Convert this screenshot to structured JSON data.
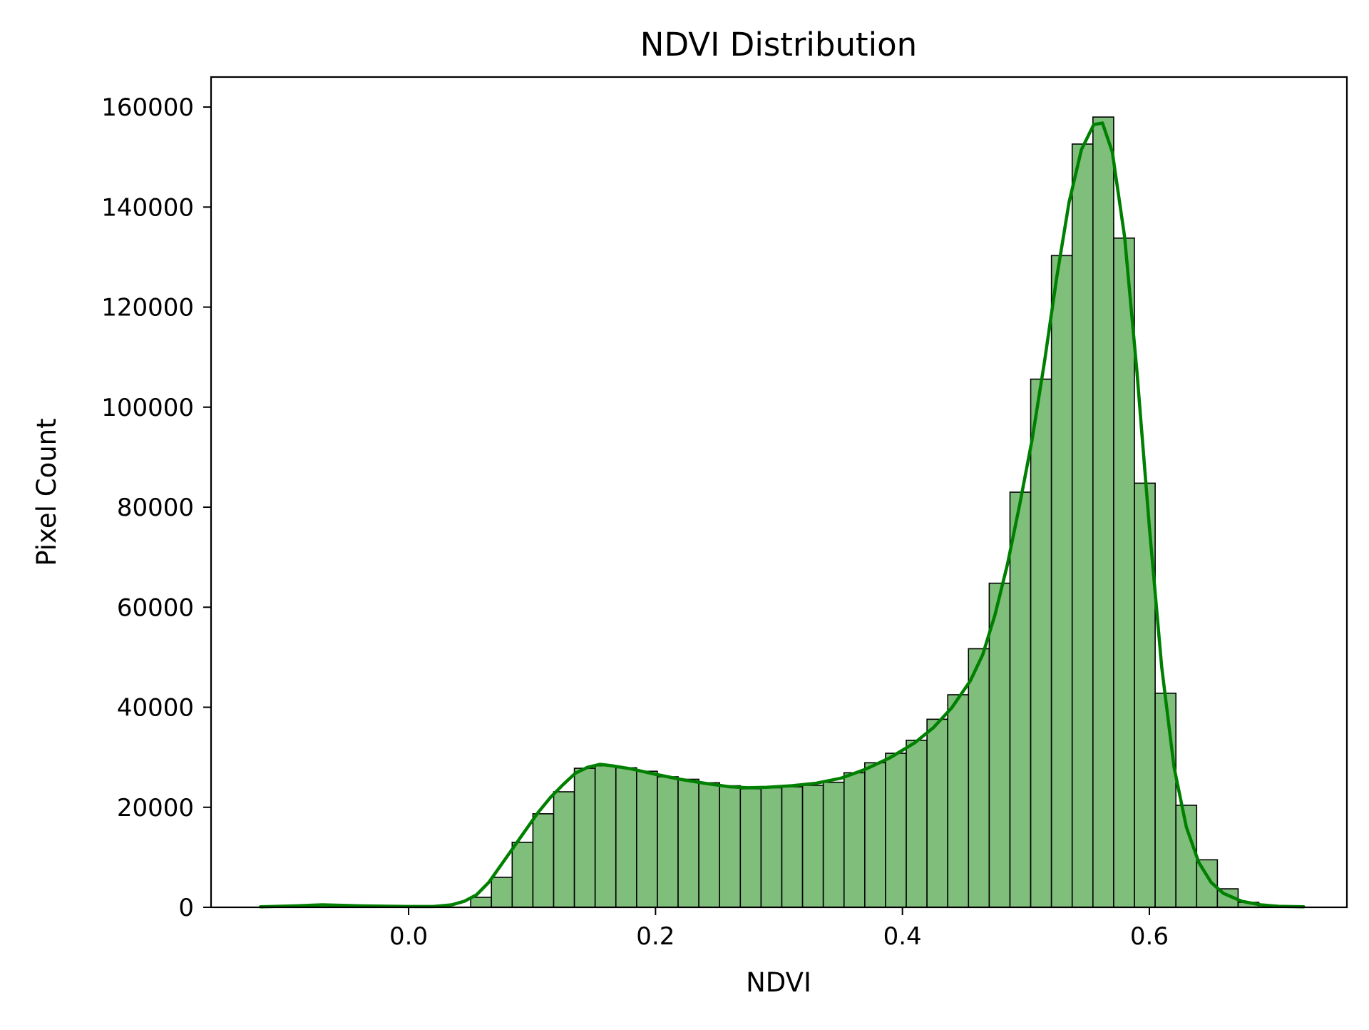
{
  "chart_data": {
    "type": "bar",
    "title": "NDVI Distribution",
    "xlabel": "NDVI",
    "ylabel": "Pixel Count",
    "xlim": [
      -0.16,
      0.76
    ],
    "ylim": [
      0,
      166000
    ],
    "x_ticks": [
      0.0,
      0.2,
      0.4,
      0.6
    ],
    "x_tick_labels": [
      "0.0",
      "0.2",
      "0.4",
      "0.6"
    ],
    "y_ticks": [
      0,
      20000,
      40000,
      60000,
      80000,
      100000,
      120000,
      140000,
      160000
    ],
    "y_tick_labels": [
      "0",
      "20000",
      "40000",
      "60000",
      "80000",
      "100000",
      "120000",
      "140000",
      "160000"
    ],
    "grid": false,
    "bar_color": "#7fbf7b",
    "bar_edge_color": "#000000",
    "line_color": "#008000",
    "bins": [
      {
        "x0": 0.0503,
        "x1": 0.0671,
        "count": 2000
      },
      {
        "x0": 0.0671,
        "x1": 0.0839,
        "count": 6000
      },
      {
        "x0": 0.0839,
        "x1": 0.1007,
        "count": 13000
      },
      {
        "x0": 0.1007,
        "x1": 0.1175,
        "count": 18700
      },
      {
        "x0": 0.1175,
        "x1": 0.1343,
        "count": 23100
      },
      {
        "x0": 0.1343,
        "x1": 0.1511,
        "count": 27800
      },
      {
        "x0": 0.1511,
        "x1": 0.1679,
        "count": 28300
      },
      {
        "x0": 0.1679,
        "x1": 0.1847,
        "count": 27900
      },
      {
        "x0": 0.1847,
        "x1": 0.2015,
        "count": 27200
      },
      {
        "x0": 0.2015,
        "x1": 0.2183,
        "count": 26100
      },
      {
        "x0": 0.2183,
        "x1": 0.2351,
        "count": 25600
      },
      {
        "x0": 0.2351,
        "x1": 0.2519,
        "count": 24900
      },
      {
        "x0": 0.2519,
        "x1": 0.2687,
        "count": 24300
      },
      {
        "x0": 0.2687,
        "x1": 0.2855,
        "count": 23700
      },
      {
        "x0": 0.2855,
        "x1": 0.3023,
        "count": 23900
      },
      {
        "x0": 0.3023,
        "x1": 0.3191,
        "count": 24100
      },
      {
        "x0": 0.3191,
        "x1": 0.3359,
        "count": 24400
      },
      {
        "x0": 0.3359,
        "x1": 0.3527,
        "count": 25000
      },
      {
        "x0": 0.3527,
        "x1": 0.3695,
        "count": 26900
      },
      {
        "x0": 0.3695,
        "x1": 0.3863,
        "count": 28900
      },
      {
        "x0": 0.3863,
        "x1": 0.4031,
        "count": 30800
      },
      {
        "x0": 0.4031,
        "x1": 0.4199,
        "count": 33400
      },
      {
        "x0": 0.4199,
        "x1": 0.4367,
        "count": 37600
      },
      {
        "x0": 0.4367,
        "x1": 0.4535,
        "count": 42500
      },
      {
        "x0": 0.4535,
        "x1": 0.4703,
        "count": 51700
      },
      {
        "x0": 0.4703,
        "x1": 0.4871,
        "count": 64800
      },
      {
        "x0": 0.4871,
        "x1": 0.5039,
        "count": 83000
      },
      {
        "x0": 0.5039,
        "x1": 0.5207,
        "count": 105600
      },
      {
        "x0": 0.5207,
        "x1": 0.5375,
        "count": 130300
      },
      {
        "x0": 0.5375,
        "x1": 0.5543,
        "count": 152600
      },
      {
        "x0": 0.5543,
        "x1": 0.5711,
        "count": 158000
      },
      {
        "x0": 0.5711,
        "x1": 0.5879,
        "count": 133800
      },
      {
        "x0": 0.5879,
        "x1": 0.6047,
        "count": 84800
      },
      {
        "x0": 0.6047,
        "x1": 0.6215,
        "count": 42800
      },
      {
        "x0": 0.6215,
        "x1": 0.6383,
        "count": 20400
      },
      {
        "x0": 0.6383,
        "x1": 0.6551,
        "count": 9500
      },
      {
        "x0": 0.6551,
        "x1": 0.6719,
        "count": 3700
      },
      {
        "x0": 0.6719,
        "x1": 0.6887,
        "count": 1000
      }
    ],
    "kde": [
      [
        -0.12,
        100
      ],
      [
        -0.09,
        300
      ],
      [
        -0.07,
        500
      ],
      [
        -0.04,
        300
      ],
      [
        0.0,
        150
      ],
      [
        0.02,
        150
      ],
      [
        0.035,
        500
      ],
      [
        0.045,
        1200
      ],
      [
        0.055,
        2500
      ],
      [
        0.065,
        5000
      ],
      [
        0.075,
        8500
      ],
      [
        0.085,
        12000
      ],
      [
        0.095,
        15500
      ],
      [
        0.105,
        19000
      ],
      [
        0.115,
        22000
      ],
      [
        0.125,
        24500
      ],
      [
        0.135,
        26800
      ],
      [
        0.145,
        28000
      ],
      [
        0.155,
        28600
      ],
      [
        0.165,
        28300
      ],
      [
        0.18,
        27700
      ],
      [
        0.2,
        26600
      ],
      [
        0.22,
        25600
      ],
      [
        0.24,
        24800
      ],
      [
        0.26,
        24100
      ],
      [
        0.275,
        23900
      ],
      [
        0.29,
        24000
      ],
      [
        0.31,
        24300
      ],
      [
        0.33,
        24800
      ],
      [
        0.35,
        25800
      ],
      [
        0.37,
        27600
      ],
      [
        0.39,
        29900
      ],
      [
        0.41,
        32900
      ],
      [
        0.425,
        35900
      ],
      [
        0.44,
        39900
      ],
      [
        0.455,
        45300
      ],
      [
        0.465,
        50500
      ],
      [
        0.475,
        58500
      ],
      [
        0.485,
        68500
      ],
      [
        0.495,
        80500
      ],
      [
        0.505,
        93500
      ],
      [
        0.515,
        109000
      ],
      [
        0.525,
        126000
      ],
      [
        0.535,
        141000
      ],
      [
        0.545,
        151500
      ],
      [
        0.555,
        156500
      ],
      [
        0.562,
        156800
      ],
      [
        0.57,
        151000
      ],
      [
        0.58,
        134000
      ],
      [
        0.59,
        107000
      ],
      [
        0.6,
        76000
      ],
      [
        0.61,
        48000
      ],
      [
        0.62,
        28000
      ],
      [
        0.63,
        16000
      ],
      [
        0.64,
        9000
      ],
      [
        0.65,
        5000
      ],
      [
        0.66,
        2800
      ],
      [
        0.675,
        1200
      ],
      [
        0.69,
        500
      ],
      [
        0.705,
        200
      ],
      [
        0.725,
        100
      ]
    ]
  }
}
